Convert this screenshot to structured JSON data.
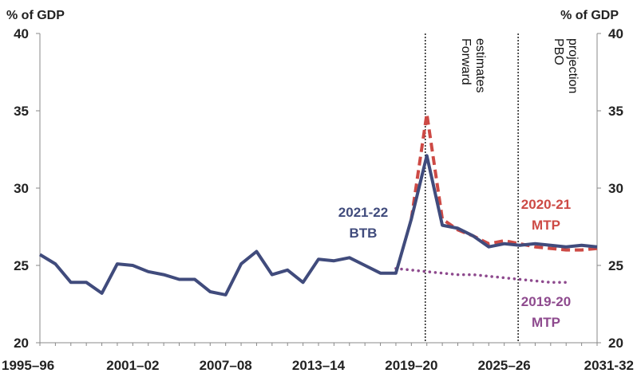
{
  "chart_data": {
    "type": "line",
    "title": "",
    "ylabel_left": "% of GDP",
    "ylabel_right": "% of GDP",
    "ylim": [
      20,
      40
    ],
    "yticks": [
      20,
      25,
      30,
      35,
      40
    ],
    "xlim": [
      1995,
      2031
    ],
    "xtick_labels": [
      {
        "x": 1995,
        "label": "1995–96"
      },
      {
        "x": 2001,
        "label": "2001–02"
      },
      {
        "x": 2007,
        "label": "2007–08"
      },
      {
        "x": 2013,
        "label": "2013–14"
      },
      {
        "x": 2019,
        "label": "2019–20"
      },
      {
        "x": 2025,
        "label": "2025–26"
      },
      {
        "x": 2031,
        "label": "2031-32"
      }
    ],
    "region_markers": [
      {
        "x": 2019.9,
        "label_lines": [
          "Forward",
          "estimates"
        ]
      },
      {
        "x": 2025.9,
        "label_lines": [
          "PBO",
          "projection"
        ]
      }
    ],
    "series": [
      {
        "key": "btb",
        "label_lines": [
          "2021-22",
          "BTB"
        ],
        "color": "#404B7C",
        "style": "solid",
        "x": [
          1995,
          1996,
          1997,
          1998,
          1999,
          2000,
          2001,
          2002,
          2003,
          2004,
          2005,
          2006,
          2007,
          2008,
          2009,
          2010,
          2011,
          2012,
          2013,
          2014,
          2015,
          2016,
          2017,
          2018,
          2019,
          2020,
          2021,
          2022,
          2023,
          2024,
          2025,
          2026,
          2027,
          2028,
          2029,
          2030,
          2031
        ],
        "values": [
          25.7,
          25.1,
          23.9,
          23.9,
          23.2,
          25.1,
          25.0,
          24.6,
          24.4,
          24.1,
          24.1,
          23.3,
          23.1,
          25.1,
          25.9,
          24.4,
          24.7,
          23.9,
          25.4,
          25.3,
          25.5,
          25.0,
          24.5,
          24.5,
          28.0,
          32.1,
          27.6,
          27.4,
          26.9,
          26.2,
          26.4,
          26.3,
          26.4,
          26.3,
          26.2,
          26.3,
          26.2
        ]
      },
      {
        "key": "mtp2021",
        "label_lines": [
          "2020-21",
          "MTP"
        ],
        "color": "#CD4A45",
        "style": "dashed",
        "x": [
          2019,
          2020,
          2021,
          2022,
          2023,
          2024,
          2025,
          2026,
          2027,
          2028,
          2029,
          2030,
          2031
        ],
        "values": [
          28.0,
          34.8,
          28.0,
          27.3,
          26.9,
          26.4,
          26.6,
          26.4,
          26.2,
          26.1,
          26.0,
          26.0,
          26.1
        ]
      },
      {
        "key": "mtp1920",
        "label_lines": [
          "2019-20",
          "MTP"
        ],
        "color": "#8E4A8E",
        "style": "dotted",
        "x": [
          2018,
          2019,
          2020,
          2021,
          2022,
          2023,
          2024,
          2025,
          2026,
          2027,
          2028,
          2029
        ],
        "values": [
          24.8,
          24.7,
          24.6,
          24.5,
          24.4,
          24.4,
          24.3,
          24.2,
          24.1,
          24.0,
          23.9,
          23.9
        ]
      }
    ]
  }
}
